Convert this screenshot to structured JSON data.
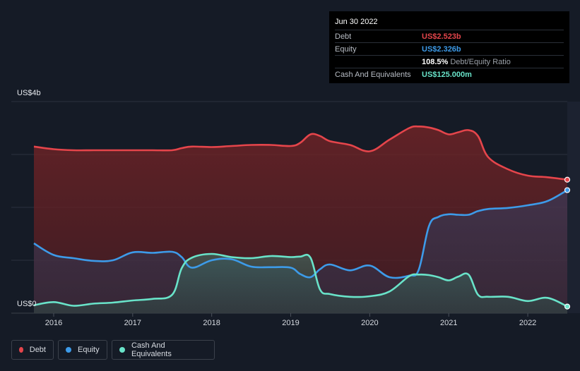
{
  "tooltip": {
    "date": "Jun 30 2022",
    "rows": [
      {
        "label": "Debt",
        "value": "US$2.523b",
        "color": "#e5454b"
      },
      {
        "label": "Equity",
        "value": "US$2.326b",
        "color": "#3d9be9"
      },
      {
        "label": "",
        "value": "108.5%",
        "note": "Debt/Equity Ratio",
        "color": "#ffffff"
      },
      {
        "label": "Cash And Equivalents",
        "value": "US$125.000m",
        "color": "#69e3c9"
      }
    ]
  },
  "legend": [
    {
      "label": "Debt",
      "color": "#e5454b"
    },
    {
      "label": "Equity",
      "color": "#3d9be9"
    },
    {
      "label": "Cash And Equivalents",
      "color": "#69e3c9"
    }
  ],
  "chart_data": {
    "type": "area",
    "y_top_label": "US$4b",
    "y_bottom_label": "US$0",
    "ylim": [
      0,
      4.0
    ],
    "xlim": [
      2015.75,
      2022.5
    ],
    "x_ticks": [
      "2016",
      "2017",
      "2018",
      "2019",
      "2020",
      "2021",
      "2022"
    ],
    "x_tick_values": [
      2016,
      2017,
      2018,
      2019,
      2020,
      2021,
      2022
    ],
    "grid": true,
    "legend_position": "bottom-left",
    "series": [
      {
        "name": "Debt",
        "color": "#e5454b",
        "x": [
          2015.75,
          2016.0,
          2016.25,
          2016.5,
          2016.75,
          2017.0,
          2017.25,
          2017.5,
          2017.62,
          2017.75,
          2018.0,
          2018.25,
          2018.5,
          2018.75,
          2019.0,
          2019.12,
          2019.25,
          2019.37,
          2019.5,
          2019.75,
          2020.0,
          2020.25,
          2020.5,
          2020.62,
          2020.75,
          2020.87,
          2021.0,
          2021.12,
          2021.25,
          2021.37,
          2021.5,
          2021.75,
          2022.0,
          2022.25,
          2022.5
        ],
        "y": [
          3.15,
          3.1,
          3.08,
          3.08,
          3.08,
          3.08,
          3.08,
          3.08,
          3.12,
          3.15,
          3.14,
          3.16,
          3.18,
          3.18,
          3.16,
          3.22,
          3.38,
          3.35,
          3.25,
          3.18,
          3.06,
          3.28,
          3.5,
          3.53,
          3.51,
          3.46,
          3.38,
          3.42,
          3.46,
          3.35,
          2.95,
          2.72,
          2.6,
          2.57,
          2.523
        ]
      },
      {
        "name": "Equity",
        "color": "#3d9be9",
        "x": [
          2015.75,
          2016.0,
          2016.25,
          2016.5,
          2016.75,
          2017.0,
          2017.25,
          2017.5,
          2017.62,
          2017.75,
          2018.0,
          2018.25,
          2018.5,
          2018.75,
          2019.0,
          2019.12,
          2019.25,
          2019.37,
          2019.5,
          2019.75,
          2020.0,
          2020.25,
          2020.5,
          2020.62,
          2020.75,
          2020.87,
          2021.0,
          2021.12,
          2021.25,
          2021.37,
          2021.5,
          2021.75,
          2022.0,
          2022.25,
          2022.5
        ],
        "y": [
          1.32,
          1.1,
          1.04,
          0.99,
          1.0,
          1.15,
          1.14,
          1.16,
          1.06,
          0.86,
          1.0,
          1.02,
          0.88,
          0.87,
          0.86,
          0.74,
          0.68,
          0.83,
          0.92,
          0.81,
          0.9,
          0.68,
          0.71,
          0.82,
          1.65,
          1.82,
          1.87,
          1.86,
          1.86,
          1.93,
          1.97,
          1.99,
          2.04,
          2.12,
          2.326
        ]
      },
      {
        "name": "Cash And Equivalents",
        "color": "#69e3c9",
        "x": [
          2015.75,
          2016.0,
          2016.25,
          2016.5,
          2016.75,
          2017.0,
          2017.25,
          2017.5,
          2017.62,
          2017.75,
          2018.0,
          2018.25,
          2018.5,
          2018.75,
          2019.0,
          2019.12,
          2019.25,
          2019.37,
          2019.5,
          2019.75,
          2020.0,
          2020.25,
          2020.5,
          2020.62,
          2020.75,
          2020.87,
          2021.0,
          2021.12,
          2021.25,
          2021.37,
          2021.5,
          2021.75,
          2022.0,
          2022.25,
          2022.5
        ],
        "y": [
          0.15,
          0.21,
          0.14,
          0.18,
          0.2,
          0.24,
          0.27,
          0.35,
          0.85,
          1.05,
          1.12,
          1.06,
          1.04,
          1.08,
          1.06,
          1.07,
          1.05,
          0.45,
          0.36,
          0.31,
          0.32,
          0.41,
          0.7,
          0.73,
          0.72,
          0.68,
          0.62,
          0.69,
          0.73,
          0.35,
          0.31,
          0.31,
          0.23,
          0.29,
          0.125
        ]
      }
    ]
  }
}
